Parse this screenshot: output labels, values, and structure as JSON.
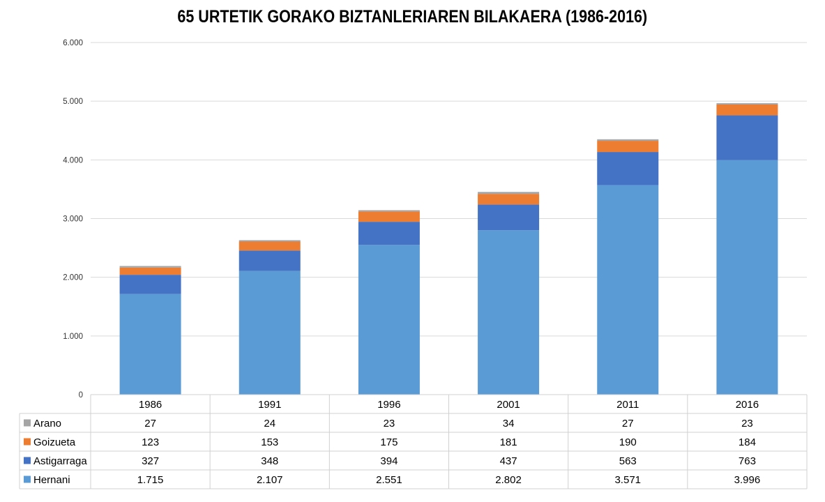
{
  "chart_data": {
    "type": "bar",
    "stacked": true,
    "title": "65 URTETIK GORAKO BIZTANLERIAREN BILAKAERA (1986-2016)",
    "categories": [
      "1986",
      "1991",
      "1996",
      "2001",
      "2011",
      "2016"
    ],
    "ylim": [
      0,
      6000
    ],
    "yticks": [
      0,
      1000,
      2000,
      3000,
      4000,
      5000,
      6000
    ],
    "ytick_labels": [
      "0",
      "1.000",
      "2.000",
      "3.000",
      "4.000",
      "5.000",
      "6.000"
    ],
    "grid": true,
    "legend": "data-table",
    "series": [
      {
        "name": "Hernani",
        "color": "#5B9BD5",
        "values": [
          1715,
          2107,
          2551,
          2802,
          3571,
          3996
        ],
        "labels": [
          "1.715",
          "2.107",
          "2.551",
          "2.802",
          "3.571",
          "3.996"
        ]
      },
      {
        "name": "Astigarraga",
        "color": "#4472C4",
        "values": [
          327,
          348,
          394,
          437,
          563,
          763
        ],
        "labels": [
          "327",
          "348",
          "394",
          "437",
          "563",
          "763"
        ]
      },
      {
        "name": "Goizueta",
        "color": "#ED7D31",
        "values": [
          123,
          153,
          175,
          181,
          190,
          184
        ],
        "labels": [
          "123",
          "153",
          "175",
          "181",
          "190",
          "184"
        ]
      },
      {
        "name": "Arano",
        "color": "#A5A5A5",
        "values": [
          27,
          24,
          23,
          34,
          27,
          23
        ],
        "labels": [
          "27",
          "24",
          "23",
          "34",
          "27",
          "23"
        ]
      }
    ],
    "table_row_order": [
      "Arano",
      "Goizueta",
      "Astigarraga",
      "Hernani"
    ]
  }
}
